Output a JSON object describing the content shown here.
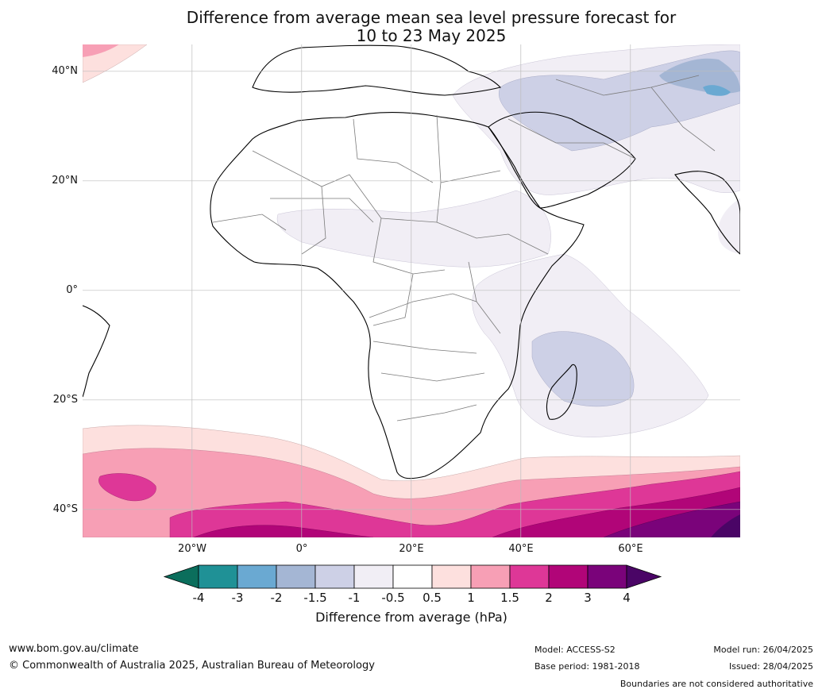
{
  "title_line1": "Difference from average mean sea level pressure forecast for",
  "title_line2": "10 to 23 May 2025",
  "lat_labels": [
    "40°N",
    "20°N",
    "0°",
    "20°S",
    "40°S"
  ],
  "lon_labels": [
    "20°W",
    "0°",
    "20°E",
    "40°E",
    "60°E"
  ],
  "colorbar": {
    "title": "Difference from average (hPa)",
    "ticks": [
      "-4",
      "-3",
      "-2",
      "-1.5",
      "-1",
      "-0.5",
      "0.5",
      "1",
      "1.5",
      "2",
      "3",
      "4"
    ],
    "colors": [
      "#0b6e5c",
      "#1f9196",
      "#6aa9d2",
      "#a4b6d4",
      "#cdd0e6",
      "#f1eef5",
      "#ffffff",
      "#fde0de",
      "#f79fb5",
      "#de3797",
      "#b10578",
      "#7a037a",
      "#4a0566"
    ]
  },
  "footer": {
    "website": "www.bom.gov.au/climate",
    "copyright": "© Commonwealth of Australia 2025, Australian Bureau of Meteorology",
    "model": "Model: ACCESS-S2",
    "base_period": "Base period: 1981-2018",
    "model_run": "Model run: 26/04/2025",
    "issued": "Issued: 28/04/2025",
    "disclaimer": "Boundaries are not considered authoritative"
  }
}
